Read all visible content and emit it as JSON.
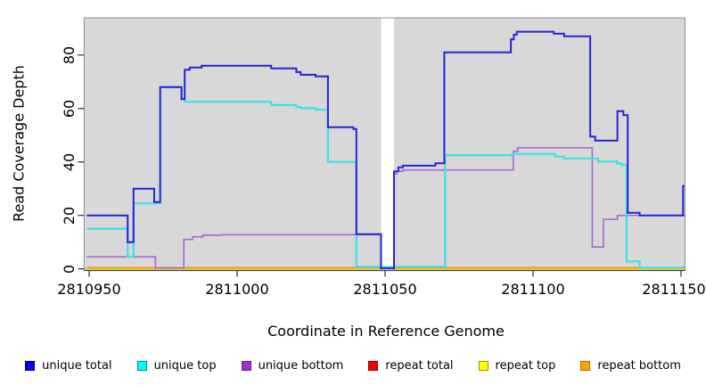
{
  "chart_data": {
    "type": "line",
    "subtype": "step-coverage",
    "title": "",
    "xlabel": "Coordinate in Reference Genome",
    "ylabel": "Read Coverage Depth",
    "xlim": [
      2810949.2,
      2811151.2
    ],
    "ylim": [
      0,
      94
    ],
    "xticks": [
      2810950,
      2811000,
      2811050,
      2811100,
      2811150
    ],
    "yticks": [
      0,
      20,
      40,
      60,
      80
    ],
    "grid": false,
    "legend_position": "bottom",
    "panel_bg": "#d8d8d8",
    "frame_color": "#909090",
    "baseline_color": "#404040",
    "tick_color": "#303030",
    "masked_region": {
      "x_start": 2811048.7,
      "x_end": 2811053.0,
      "color": "#ffffff"
    },
    "series": [
      {
        "name": "unique total",
        "color": "#2424d6",
        "legend_fill": "#0000f0",
        "legend_border": "#000080",
        "width": 2,
        "z": 7,
        "points": [
          [
            2810949.2,
            20
          ],
          [
            2810963.0,
            10
          ],
          [
            2810965.0,
            30
          ],
          [
            2810972.0,
            25
          ],
          [
            2810974.0,
            68
          ],
          [
            2810981.2,
            63.5
          ],
          [
            2810982.3,
            74.5
          ],
          [
            2810984.0,
            75.3
          ],
          [
            2810988.0,
            76
          ],
          [
            2811011.5,
            75
          ],
          [
            2811020.0,
            73.6
          ],
          [
            2811021.5,
            72.6
          ],
          [
            2811026.5,
            72
          ],
          [
            2811030.7,
            53
          ],
          [
            2811039.3,
            52.3
          ],
          [
            2811040.3,
            13
          ],
          [
            2811048.6,
            0.2
          ],
          [
            2811053.0,
            36.5
          ],
          [
            2811054.5,
            38
          ],
          [
            2811056.0,
            38.6
          ],
          [
            2811067.0,
            39.5
          ],
          [
            2811070.0,
            81
          ],
          [
            2811092.5,
            85.8
          ],
          [
            2811093.5,
            87.6
          ],
          [
            2811094.5,
            88.7
          ],
          [
            2811107.0,
            88
          ],
          [
            2811110.5,
            87
          ],
          [
            2811119.3,
            49.5
          ],
          [
            2811121.0,
            48
          ],
          [
            2811128.5,
            59
          ],
          [
            2811130.5,
            57.5
          ],
          [
            2811132.0,
            21
          ],
          [
            2811136.0,
            20
          ],
          [
            2811150.7,
            31
          ],
          [
            2811151.2,
            31
          ]
        ]
      },
      {
        "name": "unique top",
        "color": "#3fe0e8",
        "legend_fill": "#00ffff",
        "legend_border": "#008b8b",
        "width": 2.2,
        "z": 6,
        "points": [
          [
            2810949.2,
            15
          ],
          [
            2810963.0,
            4.5
          ],
          [
            2810965.0,
            24.5
          ],
          [
            2810974.0,
            68
          ],
          [
            2810981.2,
            63.5
          ],
          [
            2810982.3,
            62.5
          ],
          [
            2811011.5,
            61.3
          ],
          [
            2811020.0,
            60.6
          ],
          [
            2811021.5,
            60.1
          ],
          [
            2811026.5,
            59.5
          ],
          [
            2811030.7,
            40
          ],
          [
            2811040.3,
            0.8
          ],
          [
            2811070.3,
            42.5
          ],
          [
            2811093.0,
            43
          ],
          [
            2811107.4,
            42
          ],
          [
            2811110.5,
            41.3
          ],
          [
            2811122.0,
            40.2
          ],
          [
            2811128.4,
            39.4
          ],
          [
            2811130.0,
            38.8
          ],
          [
            2811131.6,
            2.8
          ],
          [
            2811136.0,
            0.5
          ],
          [
            2811151.2,
            0.5
          ]
        ]
      },
      {
        "name": "unique bottom",
        "color": "#a76ad6",
        "legend_fill": "#9932cc",
        "legend_border": "#5e1d85",
        "width": 1.7,
        "z": 5,
        "points": [
          [
            2810949.2,
            4.5
          ],
          [
            2810972.4,
            0.3
          ],
          [
            2810982.0,
            11
          ],
          [
            2810985.0,
            12
          ],
          [
            2810988.5,
            12.6
          ],
          [
            2810995.0,
            12.8
          ],
          [
            2811048.6,
            0.2
          ],
          [
            2811053.0,
            35.6
          ],
          [
            2811054.0,
            36.5
          ],
          [
            2811056.0,
            37
          ],
          [
            2811093.3,
            44
          ],
          [
            2811094.8,
            45.3
          ],
          [
            2811120.0,
            8.2
          ],
          [
            2811123.8,
            18.5
          ],
          [
            2811128.5,
            20
          ],
          [
            2811151.2,
            20
          ]
        ]
      },
      {
        "name": "repeat total",
        "color": "#e01010",
        "legend_fill": "#ff0000",
        "legend_border": "#8b0000",
        "width": 1.5,
        "z": 1,
        "points": [
          [
            2810949.2,
            0
          ],
          [
            2811151.2,
            0
          ]
        ]
      },
      {
        "name": "repeat top",
        "color": "#f0f000",
        "legend_fill": "#ffff00",
        "legend_border": "#9a9a00",
        "width": 1.5,
        "z": 2,
        "points": [
          [
            2810949.2,
            0
          ],
          [
            2811151.2,
            0
          ]
        ]
      },
      {
        "name": "repeat bottom",
        "color": "#f5951e",
        "legend_fill": "#ffa500",
        "legend_border": "#b36b00",
        "width": 2,
        "z": 3,
        "points": [
          [
            2810949.2,
            0.4
          ],
          [
            2811151.2,
            0.4
          ]
        ]
      }
    ]
  }
}
